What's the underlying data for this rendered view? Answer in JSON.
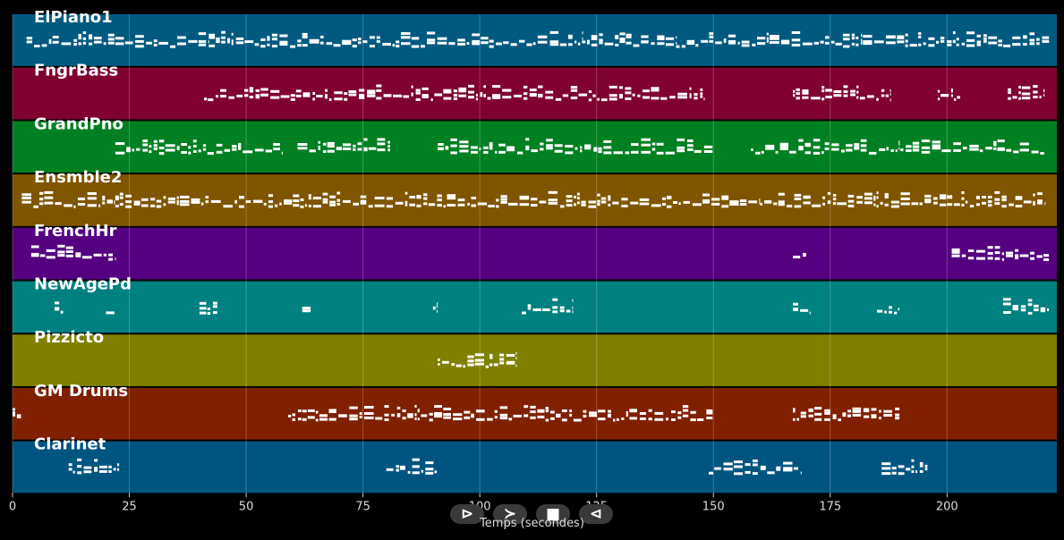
{
  "controls": {
    "back": "⊳",
    "play": "≻",
    "stop": "■",
    "forward": "⊲"
  },
  "chart_data": {
    "type": "piano-roll",
    "xlabel": "Temps (secondes)",
    "xlim": [
      0,
      223.5
    ],
    "xticks": [
      0,
      25,
      50,
      75,
      100,
      125,
      150,
      175,
      200
    ],
    "grid": true,
    "tracks": [
      {
        "name": "ElPiano1",
        "color": "#005a80",
        "notes": [
          [
            3,
            22
          ],
          [
            22,
            42
          ],
          [
            42,
            62
          ],
          [
            62,
            82
          ],
          [
            82,
            102
          ],
          [
            102,
            122
          ],
          [
            122,
            142
          ],
          [
            142,
            162
          ],
          [
            162,
            182
          ],
          [
            182,
            202
          ],
          [
            202,
            212
          ],
          [
            212,
            222
          ]
        ]
      },
      {
        "name": "FngrBass",
        "color": "#800030",
        "notes": [
          [
            41,
            148
          ],
          [
            167,
            188
          ],
          [
            198,
            203
          ],
          [
            213,
            221
          ]
        ]
      },
      {
        "name": "GrandPno",
        "color": "#008020",
        "notes": [
          [
            22,
            58
          ],
          [
            61,
            81
          ],
          [
            91,
            150
          ],
          [
            158,
            190
          ],
          [
            190,
            221
          ]
        ]
      },
      {
        "name": "Ensmble2",
        "color": "#805500",
        "notes": [
          [
            2,
            22
          ],
          [
            22,
            60
          ],
          [
            60,
            140
          ],
          [
            140,
            160
          ],
          [
            160,
            200
          ],
          [
            200,
            221
          ]
        ]
      },
      {
        "name": "FrenchHr",
        "color": "#550080",
        "notes": [
          [
            4,
            22
          ],
          [
            167,
            170
          ],
          [
            201,
            222
          ]
        ]
      },
      {
        "name": "NewAgePd",
        "color": "#008080",
        "notes": [
          [
            9,
            11
          ],
          [
            20,
            22
          ],
          [
            40,
            44
          ],
          [
            62,
            64
          ],
          [
            90,
            91
          ],
          [
            109,
            120
          ],
          [
            167,
            171
          ],
          [
            185,
            190
          ],
          [
            212,
            222
          ]
        ]
      },
      {
        "name": "Pizzicto",
        "color": "#808000",
        "notes": [
          [
            91,
            108
          ]
        ]
      },
      {
        "name": "GM Drums",
        "color": "#802000",
        "notes": [
          [
            0,
            2
          ],
          [
            59,
            62
          ],
          [
            62,
            150
          ],
          [
            167,
            190
          ]
        ]
      },
      {
        "name": "Clarinet",
        "color": "#005580",
        "notes": [
          [
            12,
            23
          ],
          [
            80,
            91
          ],
          [
            149,
            169
          ],
          [
            186,
            196
          ]
        ]
      }
    ]
  }
}
